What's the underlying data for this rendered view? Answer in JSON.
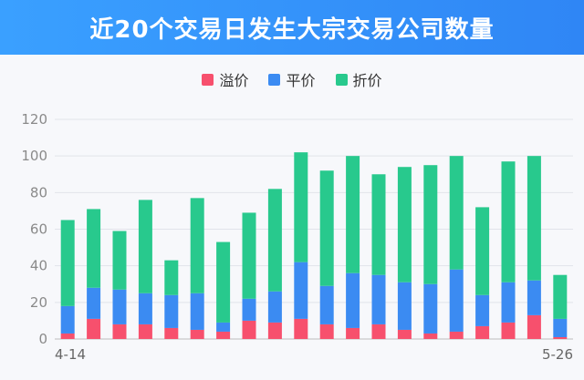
{
  "header": {
    "title": "近20个交易日发生大宗交易公司数量"
  },
  "colors": {
    "premium": "#f7506d",
    "flat": "#3b8bf2",
    "discount": "#28c98d",
    "grid": "#e1e4ea",
    "axis": "#bdbdbd"
  },
  "chart_data": {
    "type": "bar",
    "stacked": true,
    "title": "近20个交易日发生大宗交易公司数量",
    "categories": [
      "4-14",
      "",
      "",
      "",
      "",
      "",
      "",
      "",
      "",
      "",
      "",
      "",
      "",
      "",
      "",
      "",
      "",
      "",
      "",
      "5-26"
    ],
    "series": [
      {
        "name": "溢价",
        "values": [
          3,
          11,
          8,
          8,
          6,
          5,
          4,
          10,
          9,
          11,
          8,
          6,
          8,
          5,
          3,
          4,
          7,
          9,
          13,
          1
        ]
      },
      {
        "name": "平价",
        "values": [
          15,
          17,
          19,
          17,
          18,
          20,
          5,
          12,
          17,
          31,
          21,
          30,
          27,
          26,
          27,
          34,
          17,
          22,
          19,
          10
        ]
      },
      {
        "name": "折价",
        "values": [
          47,
          43,
          32,
          51,
          19,
          52,
          44,
          47,
          56,
          60,
          63,
          64,
          55,
          63,
          65,
          62,
          48,
          66,
          68,
          24
        ]
      }
    ],
    "ylim": [
      0,
      120
    ],
    "yticks": [
      0,
      20,
      40,
      60,
      80,
      100,
      120
    ],
    "legend": [
      "溢价",
      "平价",
      "折价"
    ],
    "legend_position": "top-center",
    "grid": true
  }
}
